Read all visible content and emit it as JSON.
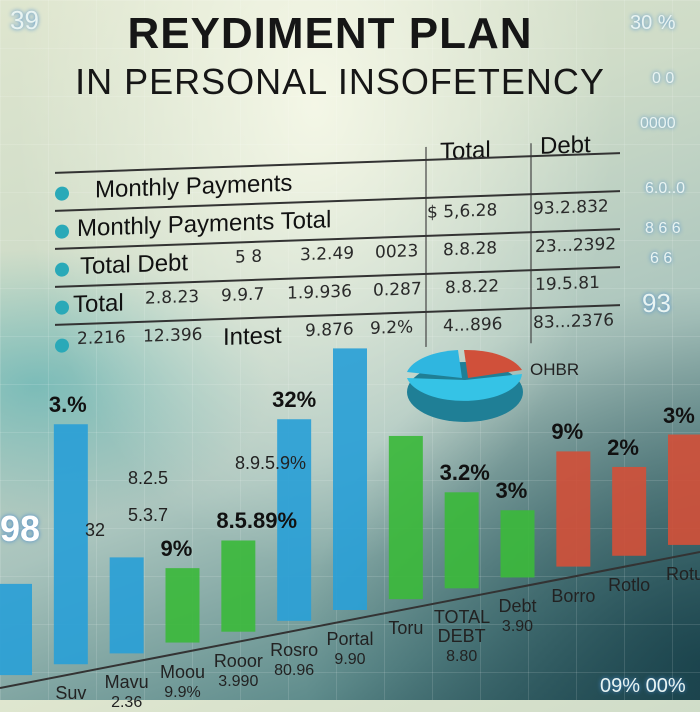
{
  "title": {
    "line1": "REYDIMENT PLAN",
    "line2": "IN PERSONAL INSOFETENCY"
  },
  "table": {
    "headers": [
      "Total",
      "Debt"
    ],
    "rows": [
      {
        "label": "Monthly  Payments",
        "cells": []
      },
      {
        "label": "Monthly Payments  Total",
        "cells": [
          "$ 5,6.28",
          "93.2.832"
        ]
      },
      {
        "label": "Total Debt",
        "cells": [
          "5 8",
          "3.2.49",
          "0023",
          "8.8.28",
          "23...2392"
        ]
      },
      {
        "label": "Total",
        "cells": [
          "2.8.23",
          "9.9.7",
          "1.9.936",
          "0.287",
          "8.8.22",
          "19.5.81"
        ]
      },
      {
        "label": "Intest",
        "cells": [
          "2.216",
          "12.396",
          "9.876",
          "9.2%",
          "4...896",
          "83...2376"
        ]
      }
    ]
  },
  "side_numbers": {
    "top_left": "39",
    "top_right": "30 %",
    "left": "98",
    "right": "93",
    "bottom_right": "09% 00%",
    "right_col": [
      "0 0",
      "0000",
      "6.0..0",
      "8 6 6",
      "6 6"
    ]
  },
  "pie_label": "OHBR",
  "colors": {
    "blue": "#2a9fd6",
    "green": "#3cb83c",
    "red": "#d0503a",
    "teal": "#2aa9b8"
  },
  "chart_data": {
    "type": "bar",
    "categories": [
      "",
      "Suv",
      "Mavu",
      "Moou",
      "Rooor",
      "Rosro",
      "Portal",
      "Toru",
      "TOTAL DEBT",
      "Debt",
      "Borro",
      "Rotlo",
      "Rotu"
    ],
    "values": [
      38,
      100,
      40,
      31,
      38,
      84,
      109,
      68,
      40,
      28,
      48,
      37,
      46
    ],
    "series_colors": [
      "blue",
      "blue",
      "blue",
      "green",
      "green",
      "blue",
      "blue",
      "green",
      "green",
      "green",
      "red",
      "red",
      "red"
    ],
    "data_labels": [
      "",
      "3.%",
      "",
      "9%",
      "8.5.89%",
      "32%",
      "",
      "",
      "3.2%",
      "3%",
      "9%",
      "2%",
      "3%"
    ],
    "sublabels": [
      "",
      "",
      "2.36",
      "9.9%",
      "3.990",
      "80.96",
      "9.90",
      "",
      "8.80",
      "3.90",
      "",
      "",
      ""
    ],
    "annotations": [
      "8.2.5",
      "8.9.5.9%",
      "5.3.7",
      "32"
    ]
  }
}
